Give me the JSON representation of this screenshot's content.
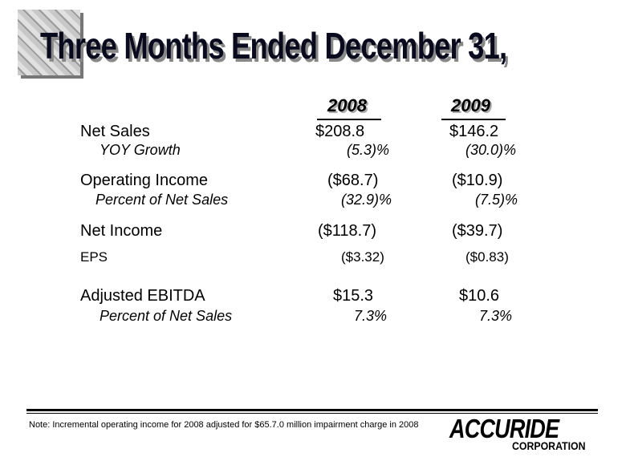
{
  "title": "Three Months Ended December 31,",
  "table": {
    "columns": [
      "2008",
      "2009"
    ],
    "rows": [
      {
        "label": "Net Sales",
        "values": [
          "$208.8",
          "$146.2"
        ]
      },
      {
        "label": "YOY Growth",
        "values": [
          "(5.3)%",
          "(30.0)%"
        ]
      },
      {
        "label": "Operating Income",
        "values": [
          "($68.7)",
          "($10.9)"
        ]
      },
      {
        "label": "Percent of Net Sales",
        "values": [
          "(32.9)%",
          "(7.5)%"
        ]
      },
      {
        "label": "Net Income",
        "values": [
          "($118.7)",
          "($39.7)"
        ]
      },
      {
        "label": "EPS",
        "values": [
          "($3.32)",
          "($0.83)"
        ]
      },
      {
        "label": "Adjusted EBITDA",
        "values": [
          "$15.3",
          "$10.6"
        ]
      },
      {
        "label": "Percent of Net Sales",
        "values": [
          "7.3%",
          "7.3%"
        ]
      }
    ]
  },
  "note": "Note:  Incremental operating income for 2008 adjusted for  $65.7.0 million impairment charge in 2008",
  "logo": {
    "name": "ACCURIDE",
    "sub": "CORPORATION"
  }
}
